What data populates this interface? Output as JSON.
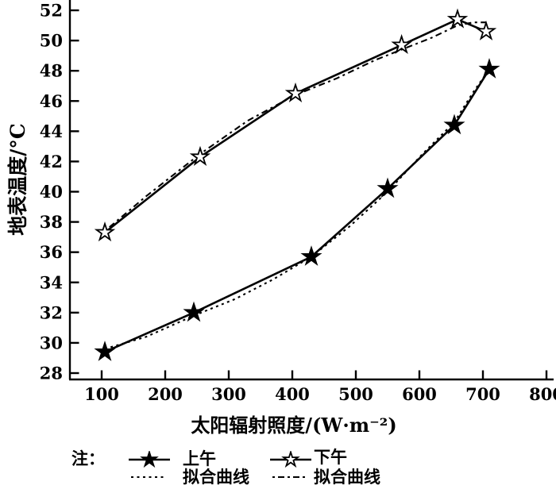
{
  "figure": {
    "background": "#ffffff",
    "ink": "#000000"
  },
  "chart_data": {
    "type": "line",
    "title": "",
    "xlabel": "太阳辐射照度/(W·m⁻²)",
    "ylabel": "地表温度/°C",
    "xlim": [
      50,
      810
    ],
    "ylim": [
      28,
      52
    ],
    "x_ticks": [
      100,
      200,
      300,
      400,
      500,
      600,
      700,
      800
    ],
    "y_ticks": [
      28,
      30,
      32,
      34,
      36,
      38,
      40,
      42,
      44,
      46,
      48,
      50,
      52
    ],
    "grid": false,
    "legend_position": "below",
    "series": [
      {
        "name": "上午",
        "role": "data",
        "marker": "filled-star",
        "line": "solid",
        "x": [
          105,
          245,
          430,
          550,
          655,
          710
        ],
        "y": [
          29.4,
          32.0,
          35.7,
          40.2,
          44.4,
          48.1
        ]
      },
      {
        "name": "下午",
        "role": "data",
        "marker": "open-star",
        "line": "solid",
        "x": [
          105,
          255,
          405,
          572,
          660,
          705
        ],
        "y": [
          37.3,
          42.3,
          46.5,
          49.7,
          51.4,
          50.6
        ]
      },
      {
        "name": "拟合曲线(上午)",
        "role": "fit",
        "marker": "none",
        "line": "dotted",
        "dash": "3 4.5",
        "x": [
          105,
          170,
          245,
          310,
          370,
          430,
          490,
          550,
          605,
          655,
          685,
          710
        ],
        "y": [
          29.6,
          30.4,
          31.8,
          32.9,
          34.2,
          35.7,
          37.7,
          40.0,
          42.5,
          44.6,
          46.6,
          48.1
        ]
      },
      {
        "name": "拟合曲线(下午)",
        "role": "fit",
        "marker": "none",
        "line": "dotted",
        "dash": "3 4.5 8 4.5",
        "x": [
          105,
          170,
          255,
          330,
          405,
          470,
          530,
          572,
          620,
          660,
          685,
          705
        ],
        "y": [
          37.4,
          39.7,
          42.5,
          44.7,
          46.4,
          47.5,
          48.7,
          49.4,
          50.2,
          51.0,
          51.2,
          51.2
        ]
      }
    ]
  },
  "legend": {
    "note_label": "注：",
    "entries": [
      {
        "label": "上午",
        "sample": "solid-line-filled-star"
      },
      {
        "label": "拟合曲线",
        "sample": "dotted-line"
      },
      {
        "label": "下午",
        "sample": "solid-line-open-star"
      },
      {
        "label": "拟合曲线",
        "sample": "dash-dot-line"
      }
    ]
  }
}
